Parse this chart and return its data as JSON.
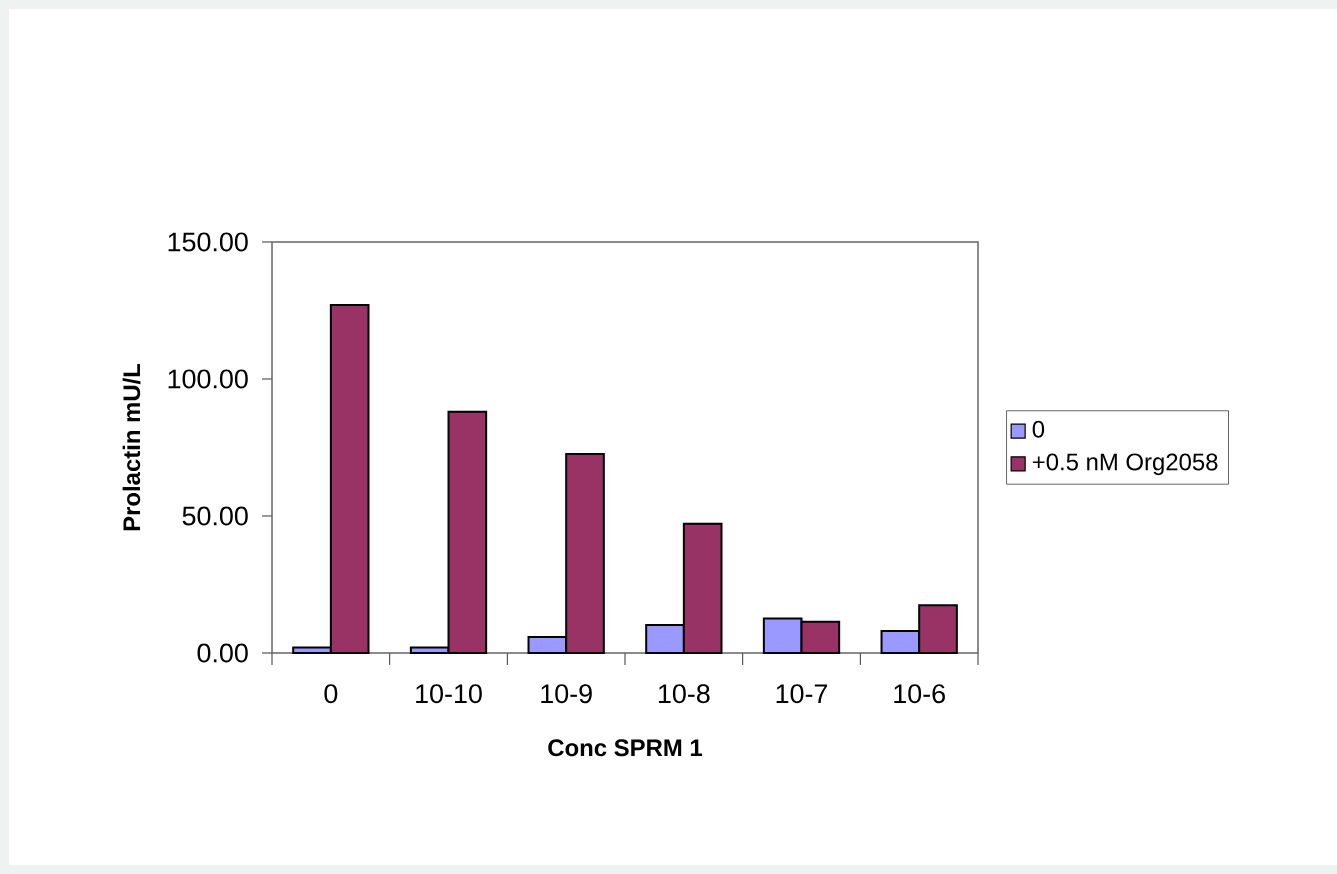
{
  "chart_data": {
    "type": "bar",
    "xlabel": "Conc SPRM 1",
    "ylabel": "Prolactin mU/L",
    "categories": [
      "0",
      "10-10",
      "10-9",
      "10-8",
      "10-7",
      "10-6"
    ],
    "series": [
      {
        "name": "0",
        "color": "#9999ff",
        "values": [
          2,
          2,
          5.8,
          10.2,
          12.6,
          8
        ]
      },
      {
        "name": "+0.5 nM Org2058",
        "color": "#993366",
        "values": [
          127,
          88,
          72.6,
          47.2,
          11.4,
          17.4
        ]
      }
    ],
    "ylim": [
      0,
      150
    ],
    "yticks": [
      {
        "value": 0,
        "label": "0.00"
      },
      {
        "value": 50,
        "label": "50.00"
      },
      {
        "value": 100,
        "label": "100.00"
      },
      {
        "value": 150,
        "label": "150.00"
      }
    ],
    "grid": false,
    "legend": "right"
  }
}
